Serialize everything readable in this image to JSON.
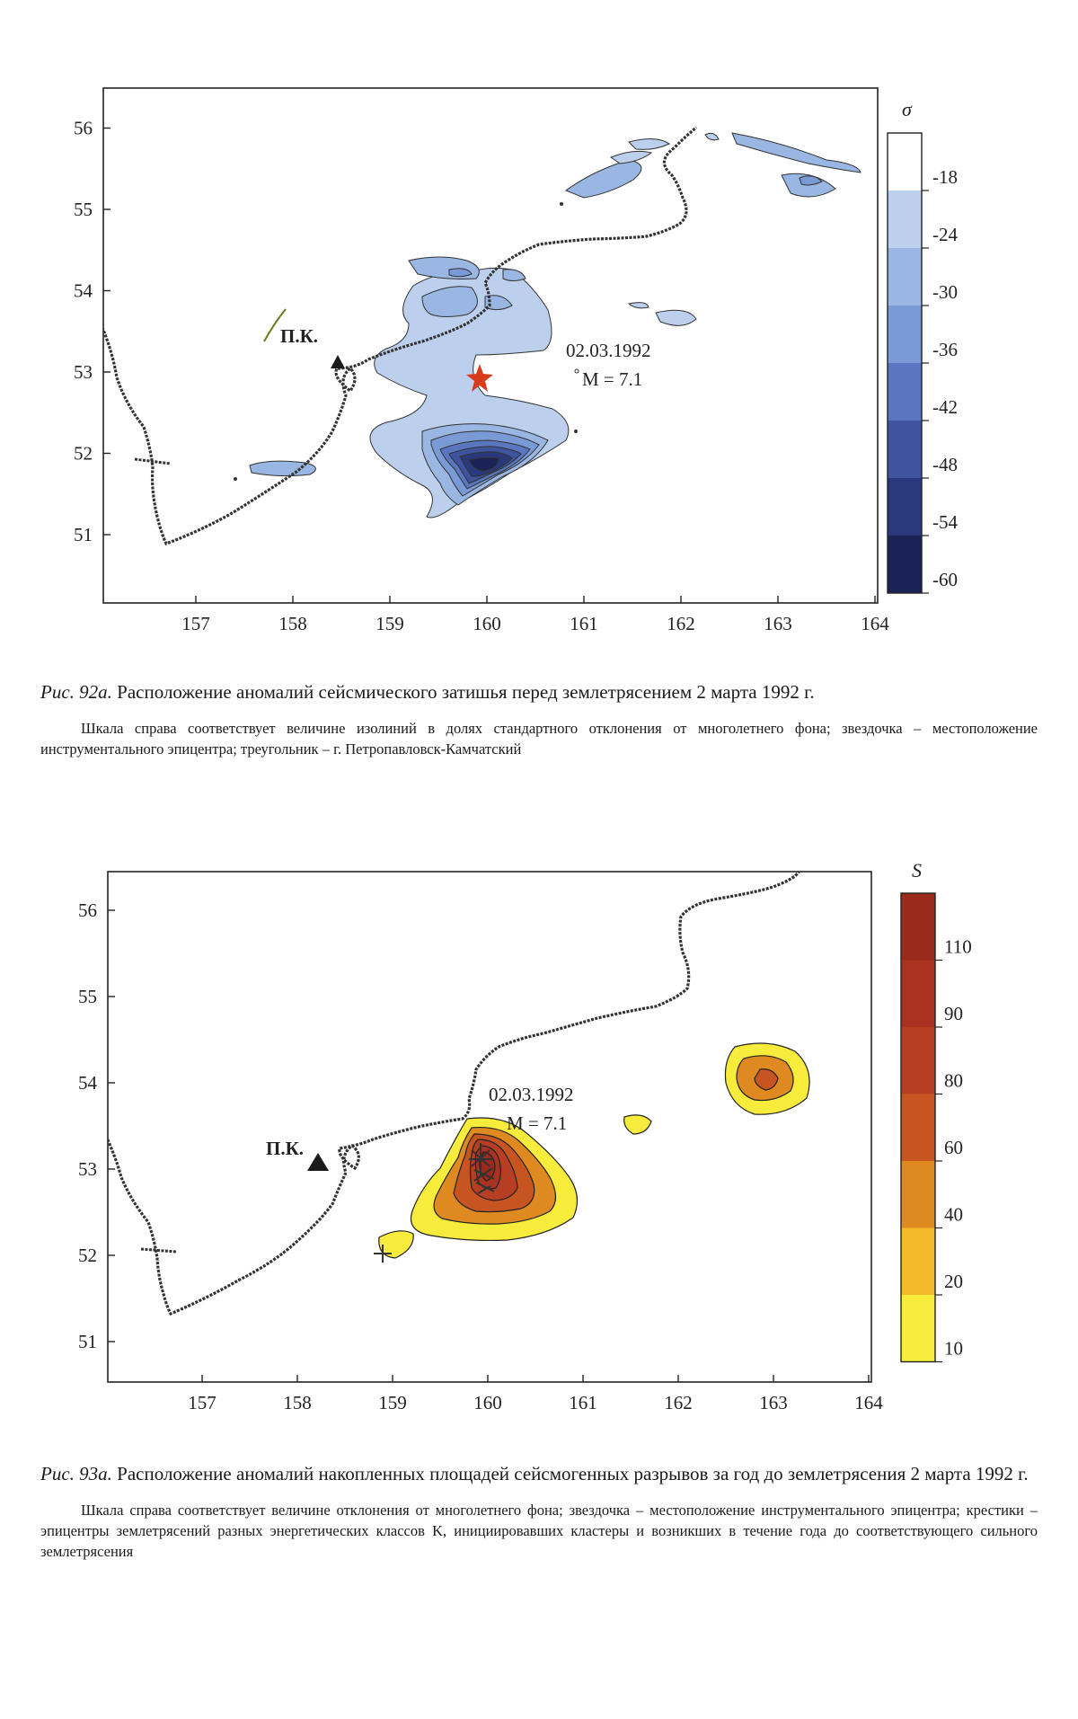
{
  "figure_a": {
    "x_ticks": [
      "157",
      "158",
      "159",
      "160",
      "161",
      "162",
      "163",
      "164"
    ],
    "y_ticks": [
      "51",
      "52",
      "53",
      "54",
      "55",
      "56"
    ],
    "city_label": "П.К.",
    "event_date": "02.03.1992",
    "event_magnitude": "M = 7.1",
    "legend_title": "σ",
    "legend_labels": [
      "-18",
      "-24",
      "-30",
      "-36",
      "-42",
      "-48",
      "-54",
      "-60"
    ],
    "legend_colors": [
      "#ffffff",
      "#bcd0ee",
      "#9ab7e4",
      "#7a9ad6",
      "#5a76c0",
      "#3e549f",
      "#2a387c",
      "#1b2356"
    ],
    "caption_id": "Рис. 92а.",
    "caption_text": "Расположение аномалий сейсмического затишья перед землетрясением 2 марта 1992 г.",
    "caption_note": "Шкала справа соответствует величине изолиний в долях стандартного отклонения от многолетнего фона; звездочка – местоположение инструментального эпицентра; треугольник – г. Петропавловск-Камчатский"
  },
  "figure_b": {
    "x_ticks": [
      "157",
      "158",
      "159",
      "160",
      "161",
      "162",
      "163",
      "164"
    ],
    "y_ticks": [
      "51",
      "52",
      "53",
      "54",
      "55",
      "56"
    ],
    "city_label": "П.К.",
    "event_date": "02.03.1992",
    "event_magnitude": "M = 7.1",
    "legend_title": "S",
    "legend_labels": [
      "110",
      "90",
      "80",
      "60",
      "40",
      "20",
      "10"
    ],
    "legend_colors": [
      "#9a2a1c",
      "#a93220",
      "#b73e22",
      "#c65521",
      "#de8a20",
      "#f2ba28",
      "#f7ec3c"
    ],
    "caption_id": "Рис. 93а.",
    "caption_text": "Расположение аномалий накопленных площадей сейсмогенных разрывов за год до землетрясения 2 марта 1992 г.",
    "caption_note": "Шкала справа соответствует величине отклонения от многолетнего фона; звездочка – местоположение инструментального эпицентра; крестики – эпицентры землетрясений разных энергетических классов K, инициировавших кластеры и возникших в течение года до соответствующего сильного землетрясения"
  }
}
